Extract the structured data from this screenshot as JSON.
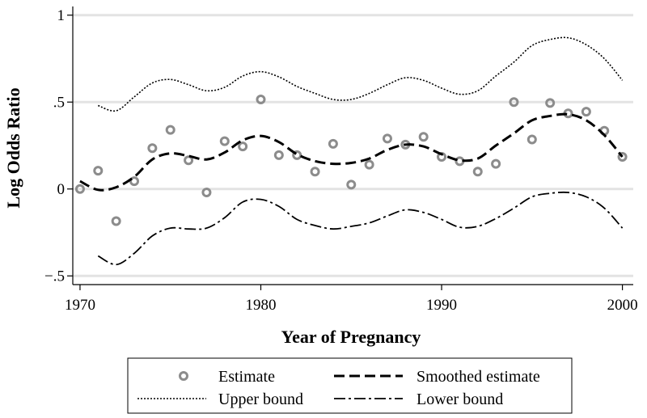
{
  "chart_data": {
    "type": "line",
    "title": "",
    "xlabel": "Year of Pregnancy",
    "ylabel": "Log Odds Ratio",
    "xlim": [
      1969.6,
      2000.6
    ],
    "ylim": [
      -0.55,
      1.05
    ],
    "x_ticks": [
      1970,
      1980,
      1990,
      2000
    ],
    "x_tick_labels": [
      "1970",
      "1980",
      "1990",
      "2000"
    ],
    "y_ticks": [
      -0.5,
      0,
      0.5,
      1
    ],
    "y_tick_labels": [
      "−.5",
      "0",
      ".5",
      "1"
    ],
    "grid": true,
    "legend_position": "bottom",
    "series": [
      {
        "name": "Estimate",
        "style": "markers",
        "color": "#8c8c8c",
        "x": [
          1970,
          1971,
          1972,
          1973,
          1974,
          1975,
          1976,
          1977,
          1978,
          1979,
          1980,
          1981,
          1982,
          1983,
          1984,
          1985,
          1986,
          1987,
          1988,
          1989,
          1990,
          1991,
          1992,
          1993,
          1994,
          1995,
          1996,
          1997,
          1998,
          1999,
          2000
        ],
        "y": [
          0.0,
          0.105,
          -0.185,
          0.045,
          0.235,
          0.34,
          0.165,
          -0.02,
          0.275,
          0.245,
          0.515,
          0.195,
          0.195,
          0.1,
          0.26,
          0.025,
          0.14,
          0.29,
          0.255,
          0.3,
          0.185,
          0.16,
          0.1,
          0.145,
          0.5,
          0.285,
          0.495,
          0.435,
          0.445,
          0.335,
          0.185
        ]
      },
      {
        "name": "Smoothed estimate",
        "style": "dashed",
        "color": "#000000",
        "x": [
          1970,
          1971,
          1972,
          1973,
          1974,
          1975,
          1976,
          1977,
          1978,
          1979,
          1980,
          1981,
          1982,
          1983,
          1984,
          1985,
          1986,
          1987,
          1988,
          1989,
          1990,
          1991,
          1992,
          1993,
          1994,
          1995,
          1996,
          1997,
          1998,
          1999,
          2000
        ],
        "y": [
          0.045,
          -0.005,
          0.01,
          0.07,
          0.17,
          0.205,
          0.19,
          0.17,
          0.21,
          0.28,
          0.305,
          0.27,
          0.2,
          0.16,
          0.145,
          0.15,
          0.175,
          0.225,
          0.255,
          0.245,
          0.2,
          0.165,
          0.175,
          0.25,
          0.32,
          0.395,
          0.42,
          0.43,
          0.395,
          0.31,
          0.185
        ]
      },
      {
        "name": "Upper bound",
        "style": "dotted",
        "color": "#000000",
        "x": [
          1971,
          1972,
          1973,
          1974,
          1975,
          1976,
          1977,
          1978,
          1979,
          1980,
          1981,
          1982,
          1983,
          1984,
          1985,
          1986,
          1987,
          1988,
          1989,
          1990,
          1991,
          1992,
          1993,
          1994,
          1995,
          1996,
          1997,
          1998,
          1999,
          2000
        ],
        "y": [
          0.48,
          0.45,
          0.53,
          0.61,
          0.63,
          0.6,
          0.565,
          0.585,
          0.65,
          0.675,
          0.645,
          0.59,
          0.55,
          0.515,
          0.515,
          0.55,
          0.6,
          0.64,
          0.625,
          0.58,
          0.545,
          0.565,
          0.65,
          0.73,
          0.825,
          0.86,
          0.87,
          0.83,
          0.75,
          0.625
        ]
      },
      {
        "name": "Lower bound",
        "style": "dashdot",
        "color": "#000000",
        "x": [
          1971,
          1972,
          1973,
          1974,
          1975,
          1976,
          1977,
          1978,
          1979,
          1980,
          1981,
          1982,
          1983,
          1984,
          1985,
          1986,
          1987,
          1988,
          1989,
          1990,
          1991,
          1992,
          1993,
          1994,
          1995,
          1996,
          1997,
          1998,
          1999,
          2000
        ],
        "y": [
          -0.385,
          -0.435,
          -0.37,
          -0.27,
          -0.225,
          -0.23,
          -0.225,
          -0.165,
          -0.075,
          -0.06,
          -0.1,
          -0.175,
          -0.21,
          -0.23,
          -0.215,
          -0.195,
          -0.155,
          -0.12,
          -0.135,
          -0.175,
          -0.22,
          -0.215,
          -0.17,
          -0.11,
          -0.045,
          -0.025,
          -0.02,
          -0.045,
          -0.11,
          -0.225
        ]
      }
    ],
    "legend": [
      {
        "label": "Estimate",
        "style": "markers"
      },
      {
        "label": "Smoothed estimate",
        "style": "dashed"
      },
      {
        "label": "Upper bound",
        "style": "dotted"
      },
      {
        "label": "Lower bound",
        "style": "dashdot"
      }
    ]
  }
}
